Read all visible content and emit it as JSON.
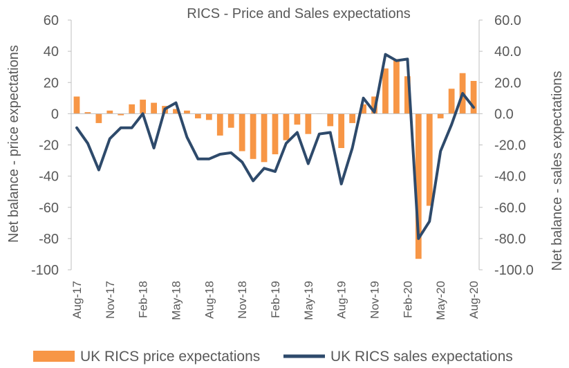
{
  "chart_data": {
    "type": "bar",
    "title": "RICS - Price and Sales expectations",
    "ylabel": "Net balance - price expectations",
    "y2label": "Net balance - sales expectations",
    "ylim": [
      -100,
      60
    ],
    "y2lim": [
      -100,
      60
    ],
    "yticks": [
      "60",
      "40",
      "20",
      "0",
      "-20",
      "-40",
      "-60",
      "-80",
      "-100"
    ],
    "y2ticks": [
      "60.0",
      "40.0",
      "20.0",
      "0.0",
      "-20.0",
      "-40.0",
      "-60.0",
      "-80.0",
      "-100.0"
    ],
    "categories": [
      "Aug-17",
      "Sep-17",
      "Oct-17",
      "Nov-17",
      "Dec-17",
      "Jan-18",
      "Feb-18",
      "Mar-18",
      "Apr-18",
      "May-18",
      "Jun-18",
      "Jul-18",
      "Aug-18",
      "Sep-18",
      "Oct-18",
      "Nov-18",
      "Dec-18",
      "Jan-19",
      "Feb-19",
      "Mar-19",
      "Apr-19",
      "May-19",
      "Jun-19",
      "Jul-19",
      "Aug-19",
      "Sep-19",
      "Oct-19",
      "Nov-19",
      "Dec-19",
      "Jan-20",
      "Feb-20",
      "Mar-20",
      "Apr-20",
      "May-20",
      "Jun-20",
      "Jul-20",
      "Aug-20"
    ],
    "xtick_labels": [
      "Aug-17",
      "Nov-17",
      "Feb-18",
      "May-18",
      "Aug-18",
      "Nov-18",
      "Feb-19",
      "May-19",
      "Aug-19",
      "Nov-19",
      "Feb-20",
      "May-20",
      "Aug-20"
    ],
    "grid": false,
    "legend_position": "bottom",
    "series": [
      {
        "name": "UK RICS price expectations",
        "type": "bar",
        "axis": "left",
        "color": "#F79646",
        "values": [
          11,
          1,
          -6,
          2,
          -1,
          6,
          9,
          7,
          5,
          3,
          2,
          -3,
          -4,
          -14,
          -9,
          -24,
          -29,
          -31,
          -26,
          -17,
          -7,
          -13,
          0,
          -8,
          -22,
          -6,
          6,
          11,
          29,
          35,
          24,
          -93,
          -59,
          -3,
          16,
          26,
          21
        ]
      },
      {
        "name": "UK RICS sales expectations",
        "type": "line",
        "axis": "right",
        "color": "#2E4A6B",
        "values": [
          -9,
          -19,
          -36,
          -16,
          -9,
          -9,
          0,
          -22,
          3,
          7,
          -15,
          -29,
          -29,
          -26,
          -25,
          -31,
          -43,
          -35,
          -37,
          -19,
          -12,
          -32,
          -13,
          -12,
          -45,
          -22,
          10,
          1,
          38,
          34,
          35,
          -80,
          -69,
          -24,
          -7,
          13,
          4
        ]
      }
    ]
  }
}
